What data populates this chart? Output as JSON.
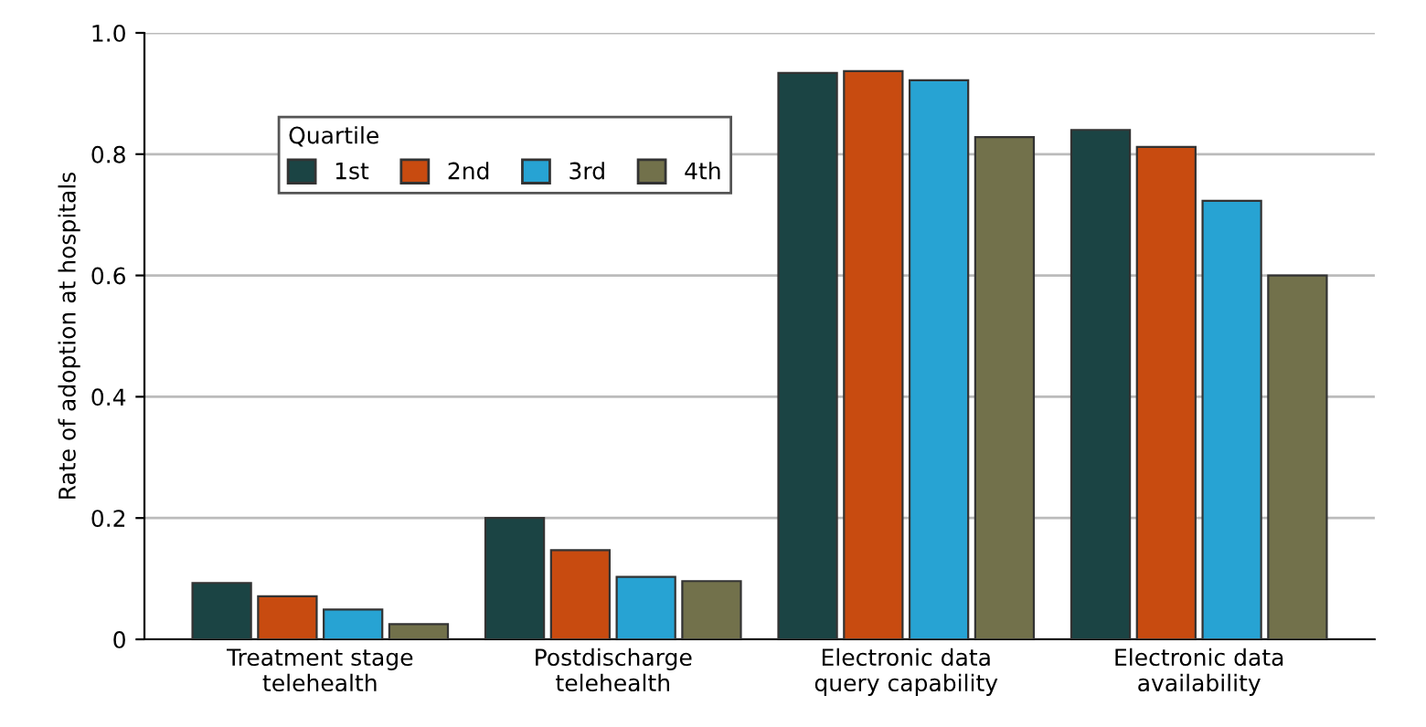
{
  "chart_data": {
    "type": "bar",
    "ylabel": "Rate of adoption at hospitals",
    "legend_title": "Quartile",
    "categories": [
      "Treatment stage\ntelehealth",
      "Postdischarge\ntelehealth",
      "Electronic data\nquery capability",
      "Electronic data\navailability"
    ],
    "series": [
      {
        "name": "1st",
        "color": "#1b4444",
        "values": [
          0.093,
          0.2,
          0.934,
          0.84
        ]
      },
      {
        "name": "2nd",
        "color": "#c84b10",
        "values": [
          0.071,
          0.147,
          0.937,
          0.812
        ]
      },
      {
        "name": "3rd",
        "color": "#27a3d3",
        "values": [
          0.049,
          0.103,
          0.922,
          0.723
        ]
      },
      {
        "name": "4th",
        "color": "#72714b",
        "values": [
          0.025,
          0.096,
          0.828,
          0.6
        ]
      }
    ],
    "ylim": [
      0,
      1.0
    ],
    "yticks": [
      0,
      0.2,
      0.4,
      0.6,
      0.8,
      {
        "value": 1.0,
        "label": "1.0"
      }
    ],
    "grid": "y",
    "legend": "top left"
  }
}
